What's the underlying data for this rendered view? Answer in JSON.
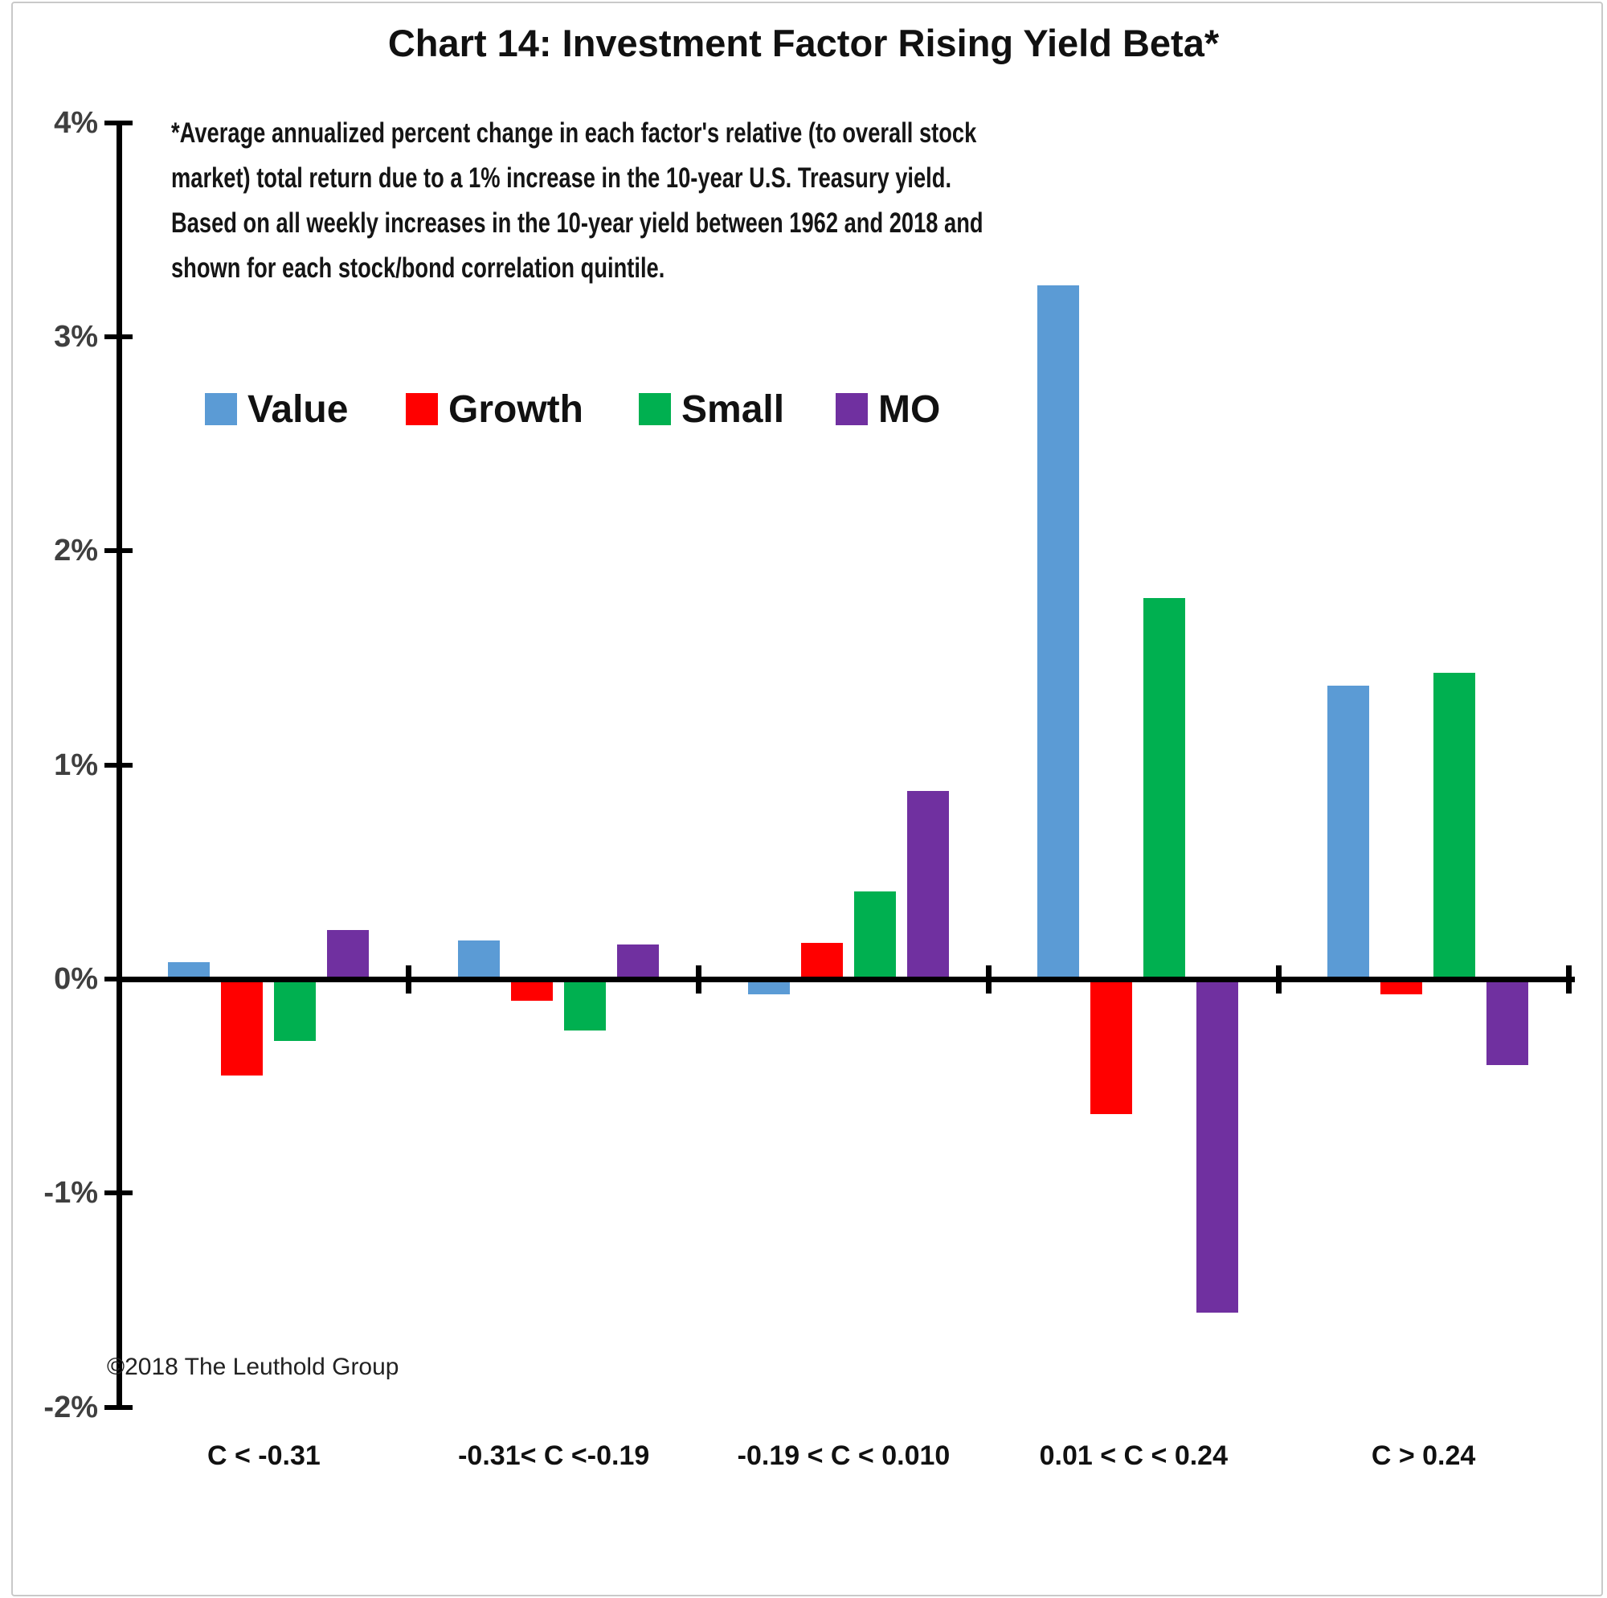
{
  "title": "Chart 14: Investment Factor Rising Yield Beta*",
  "footnote_lines": [
    "*Average annualized percent change in each factor's relative (to overall stock",
    "market) total return due to a 1% increase in the 10-year U.S. Treasury yield.",
    "Based on all weekly increases in the 10-year yield between 1962 and 2018 and",
    "shown for each stock/bond correlation quintile."
  ],
  "copyright": "©2018 The Leuthold Group",
  "chart_data": {
    "type": "bar",
    "title": "Chart 14: Investment Factor Rising Yield Beta*",
    "categories": [
      "C < -0.31",
      "-0.31< C <-0.19",
      "-0.19 < C < 0.010",
      "0.01 < C < 0.24",
      "C > 0.24"
    ],
    "series": [
      {
        "name": "Value",
        "color": "#5B9BD5",
        "values": [
          0.08,
          0.18,
          -0.07,
          3.24,
          1.37
        ]
      },
      {
        "name": "Growth",
        "color": "#FF0000",
        "values": [
          -0.45,
          -0.1,
          0.17,
          -0.63,
          -0.07
        ]
      },
      {
        "name": "Small",
        "color": "#00B050",
        "values": [
          -0.29,
          -0.24,
          0.41,
          1.78,
          1.43
        ]
      },
      {
        "name": "MO",
        "color": "#7030A0",
        "values": [
          0.23,
          0.16,
          0.88,
          -1.56,
          -0.4
        ]
      }
    ],
    "xlabel": "",
    "ylabel": "",
    "ylim": [
      -2,
      4
    ],
    "yticks": [
      {
        "value": 4,
        "label": "4%"
      },
      {
        "value": 3,
        "label": "3%"
      },
      {
        "value": 2,
        "label": "2%"
      },
      {
        "value": 1,
        "label": "1%"
      },
      {
        "value": 0,
        "label": "0%"
      },
      {
        "value": -1,
        "label": "-1%"
      },
      {
        "value": -2,
        "label": "-2%"
      }
    ],
    "grid": false,
    "legend_position": "top-left"
  }
}
